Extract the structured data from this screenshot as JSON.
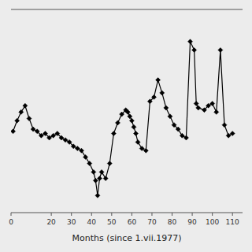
{
  "chart_data": {
    "type": "line",
    "xlabel": "Months (since 1.vii.1977)",
    "x": [
      1,
      3,
      5,
      7,
      9,
      11,
      13,
      15,
      17,
      19,
      21,
      23,
      25,
      27,
      29,
      31,
      33,
      35,
      37,
      39,
      41,
      42,
      43,
      44,
      45,
      47,
      49,
      51,
      53,
      55,
      57,
      58,
      59,
      60,
      61,
      62,
      63,
      65,
      67,
      69,
      71,
      73,
      75,
      77,
      79,
      81,
      83,
      85,
      87,
      89,
      91,
      92,
      93,
      96,
      98,
      100,
      102,
      104,
      106,
      108,
      110
    ],
    "values": [
      3.8,
      4.3,
      4.7,
      5.0,
      4.4,
      3.9,
      3.8,
      3.6,
      3.7,
      3.5,
      3.6,
      3.7,
      3.5,
      3.4,
      3.3,
      3.1,
      3.0,
      2.9,
      2.6,
      2.3,
      1.9,
      1.5,
      0.8,
      1.6,
      1.9,
      1.6,
      2.3,
      3.7,
      4.2,
      4.6,
      4.8,
      4.7,
      4.5,
      4.3,
      4.0,
      3.7,
      3.3,
      3.0,
      2.9,
      5.2,
      5.4,
      6.2,
      5.6,
      4.9,
      4.5,
      4.1,
      3.9,
      3.6,
      3.5,
      8.0,
      7.6,
      5.1,
      4.9,
      4.8,
      5.0,
      5.1,
      4.7,
      7.6,
      4.1,
      3.6,
      3.7
    ],
    "xlim": [
      0,
      115
    ],
    "ylim": [
      0,
      9.5
    ],
    "xticks": [
      0,
      20,
      30,
      40,
      50,
      60,
      70,
      80,
      90,
      100,
      110
    ],
    "yticks": [],
    "tick_labels": "x",
    "color": "black",
    "marker": "diamond"
  }
}
